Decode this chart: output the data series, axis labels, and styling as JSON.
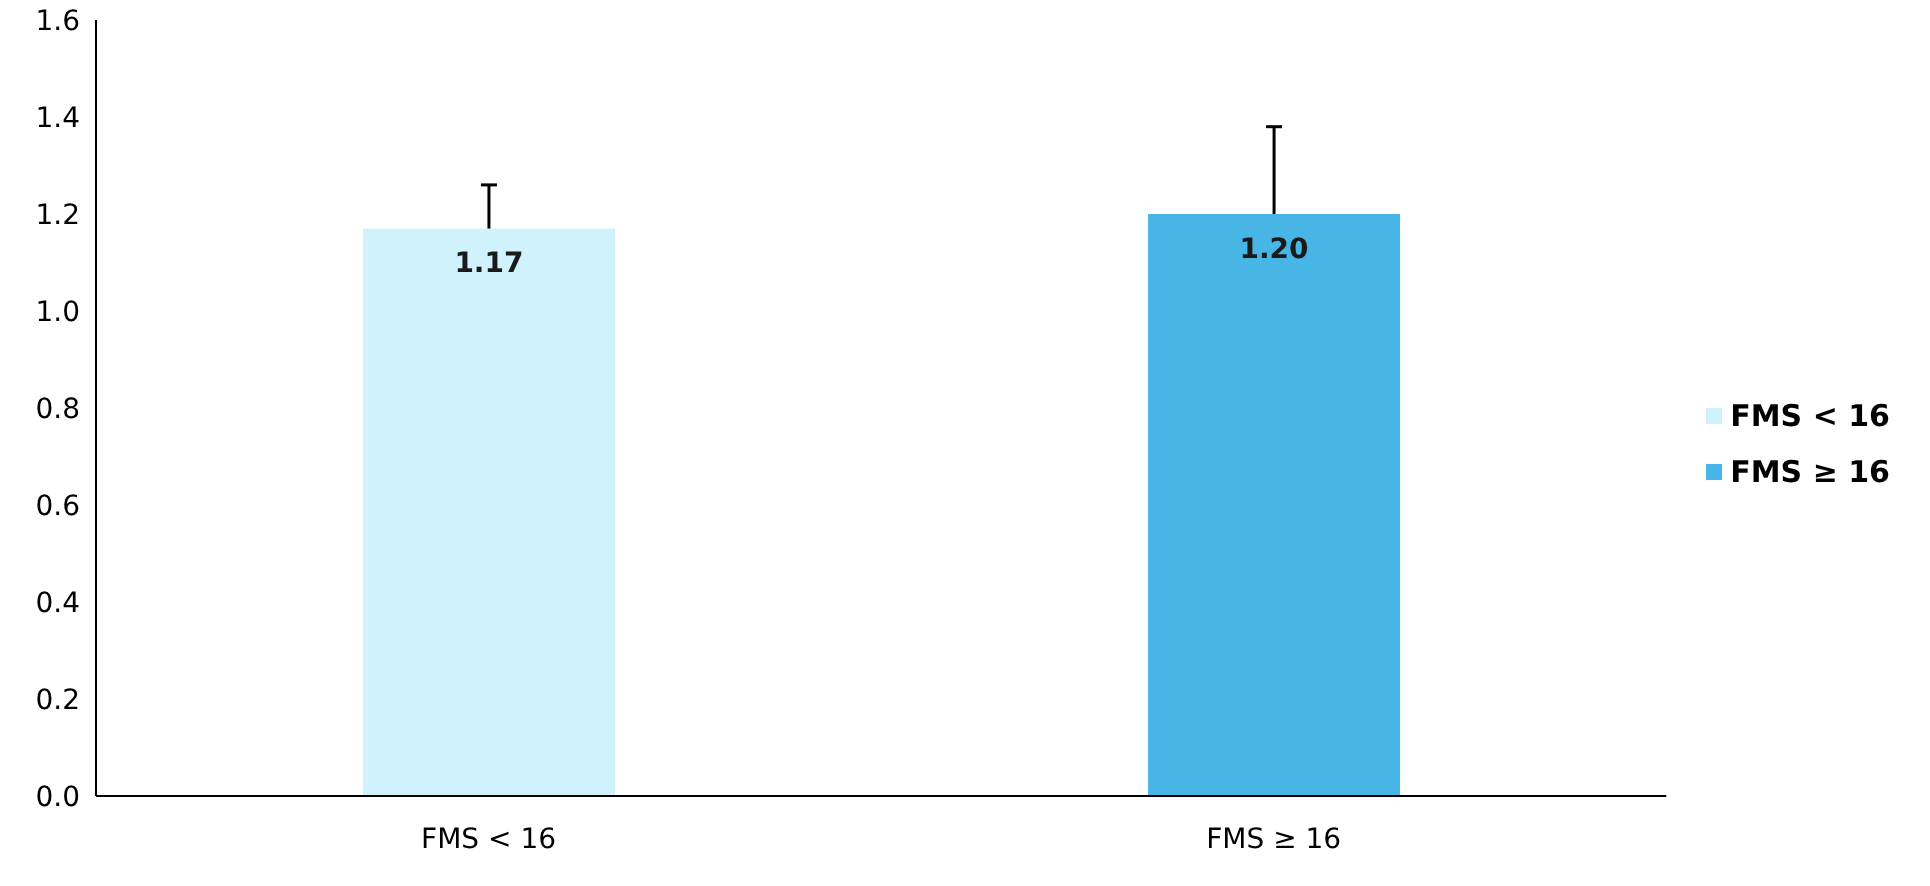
{
  "chart_data": {
    "type": "bar",
    "categories": [
      "FMS < 16",
      "FMS ≥ 16"
    ],
    "stacked": true,
    "series": [
      {
        "name": "FMS < 16",
        "color": "#cff2fc",
        "values": [
          1.17,
          null
        ],
        "errors": [
          [
            1.17,
            1.26
          ],
          null
        ],
        "value_labels": [
          "1.17",
          null
        ]
      },
      {
        "name": "FMS ≥ 16",
        "color": "#47b6e6",
        "values": [
          null,
          1.2
        ],
        "errors": [
          null,
          [
            1.2,
            1.38
          ]
        ],
        "value_labels": [
          null,
          "1.20"
        ]
      }
    ],
    "ylim": [
      0,
      1.6
    ],
    "yticks": [
      {
        "value": 0,
        "label": "0.0"
      },
      0.2,
      0.4,
      0.6,
      0.8,
      {
        "value": 1,
        "label": "1.0"
      },
      1.2,
      1.4,
      1.6
    ],
    "legend": "right",
    "grid": false
  }
}
